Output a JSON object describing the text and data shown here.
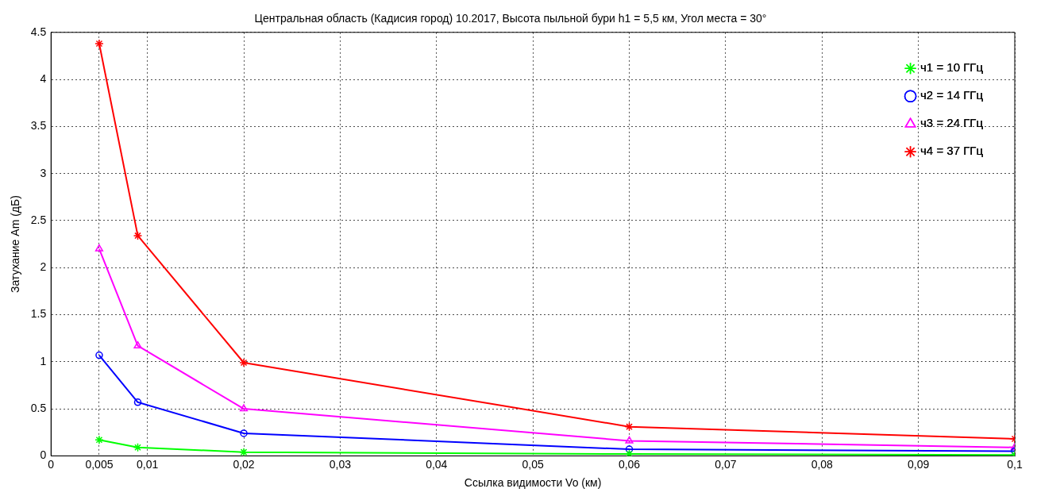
{
  "chart_data": {
    "type": "line",
    "title": "Центральная область (Кадисия город) 10.2017, Высота пыльной бури h1 = 5,5 км, Угол места = 30°",
    "xlabel": "Ссылка видимости Vo (км)",
    "ylabel": "Затухание Am (дБ)",
    "x": [
      0.005,
      0.009,
      0.02,
      0.06,
      0.1
    ],
    "series": [
      {
        "name": "ч1 = 10 ГГц",
        "color": "#00ff00",
        "marker": "cross",
        "values": [
          0.17,
          0.09,
          0.04,
          0.02,
          0.01
        ]
      },
      {
        "name": "ч2 = 14 ГГц",
        "color": "#0000ff",
        "marker": "circle",
        "values": [
          1.07,
          0.57,
          0.24,
          0.07,
          0.05
        ]
      },
      {
        "name": "ч3 = 24 ГГц",
        "color": "#ff00ff",
        "marker": "triangle",
        "values": [
          2.2,
          1.17,
          0.5,
          0.16,
          0.09
        ]
      },
      {
        "name": "ч4 = 37 ГГц",
        "color": "#ff0000",
        "marker": "cross",
        "values": [
          4.38,
          2.34,
          0.99,
          0.31,
          0.18
        ]
      }
    ],
    "xlim": [
      0,
      0.1
    ],
    "xticks": [
      0,
      {
        "value": 0.005,
        "label": "0,005"
      },
      {
        "value": 0.01,
        "label": "0,01"
      },
      {
        "value": 0.02,
        "label": "0,02"
      },
      {
        "value": 0.03,
        "label": "0,03"
      },
      {
        "value": 0.04,
        "label": "0,04"
      },
      {
        "value": 0.05,
        "label": "0,05"
      },
      {
        "value": 0.06,
        "label": "0,06"
      },
      {
        "value": 0.07,
        "label": "0,07"
      },
      {
        "value": 0.08,
        "label": "0,08"
      },
      {
        "value": 0.09,
        "label": "0,09"
      },
      {
        "value": 0.1,
        "label": "0,1"
      }
    ],
    "ylim": [
      0,
      4.5
    ],
    "yticks": [
      0,
      0.5,
      1,
      1.5,
      2,
      2.5,
      3,
      3.5,
      4,
      4.5
    ],
    "grid": true,
    "legend": "top right",
    "line_style": "solid"
  }
}
